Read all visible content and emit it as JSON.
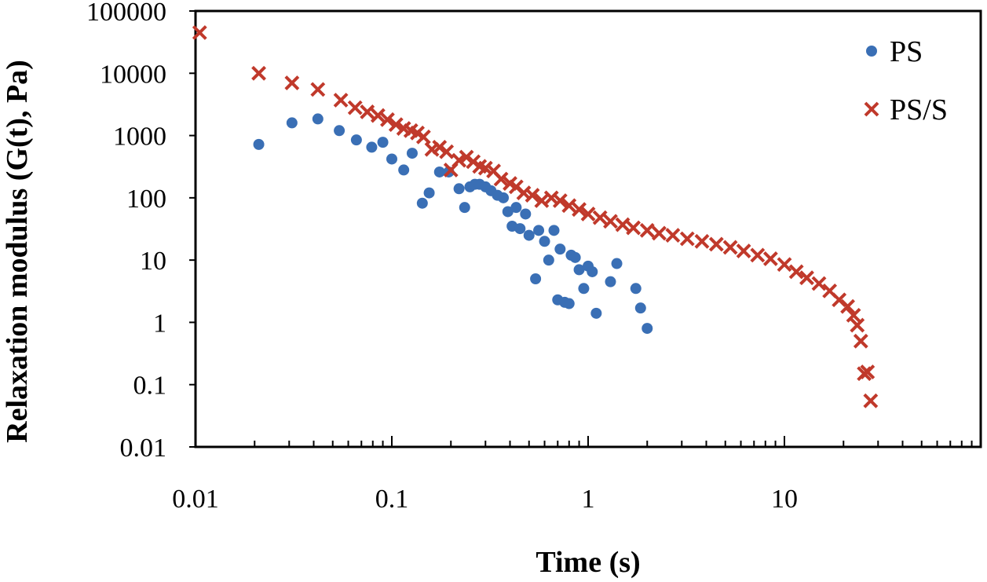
{
  "chart_data": {
    "type": "scatter",
    "xlabel": "Time (s)",
    "ylabel": "Relaxation modulus (G(t), Pa)",
    "xscale": "log",
    "yscale": "log",
    "xlim": [
      0.01,
      100
    ],
    "ylim": [
      0.01,
      100000
    ],
    "x_tick_labels": [
      "0.01",
      "0.1",
      "1",
      "10"
    ],
    "y_tick_labels": [
      "0.01",
      "0.1",
      "1",
      "10",
      "100",
      "1000",
      "10000",
      "100000"
    ],
    "grid": false,
    "legend_position": "top-right",
    "series": [
      {
        "name": "PS",
        "marker": "circle",
        "color": "#3a6fb5",
        "points": [
          [
            0.021,
            720
          ],
          [
            0.031,
            1600
          ],
          [
            0.042,
            1850
          ],
          [
            0.054,
            1200
          ],
          [
            0.066,
            850
          ],
          [
            0.079,
            650
          ],
          [
            0.09,
            780
          ],
          [
            0.1,
            420
          ],
          [
            0.115,
            280
          ],
          [
            0.127,
            520
          ],
          [
            0.143,
            82
          ],
          [
            0.155,
            120
          ],
          [
            0.175,
            260
          ],
          [
            0.195,
            260
          ],
          [
            0.22,
            140
          ],
          [
            0.235,
            70
          ],
          [
            0.25,
            150
          ],
          [
            0.265,
            165
          ],
          [
            0.28,
            165
          ],
          [
            0.3,
            150
          ],
          [
            0.32,
            130
          ],
          [
            0.345,
            110
          ],
          [
            0.37,
            100
          ],
          [
            0.39,
            60
          ],
          [
            0.41,
            35
          ],
          [
            0.43,
            70
          ],
          [
            0.45,
            32
          ],
          [
            0.48,
            55
          ],
          [
            0.5,
            25
          ],
          [
            0.54,
            5
          ],
          [
            0.56,
            30
          ],
          [
            0.6,
            20
          ],
          [
            0.63,
            10
          ],
          [
            0.67,
            30
          ],
          [
            0.7,
            2.3
          ],
          [
            0.72,
            15
          ],
          [
            0.76,
            2.1
          ],
          [
            0.8,
            2.0
          ],
          [
            0.82,
            12
          ],
          [
            0.86,
            11
          ],
          [
            0.9,
            7.0
          ],
          [
            0.95,
            3.5
          ],
          [
            1.0,
            8.0
          ],
          [
            1.05,
            6.5
          ],
          [
            1.1,
            1.4
          ],
          [
            1.3,
            4.5
          ],
          [
            1.4,
            8.8
          ],
          [
            1.75,
            3.5
          ],
          [
            1.85,
            1.7
          ],
          [
            2.0,
            0.8
          ]
        ]
      },
      {
        "name": "PS/S",
        "marker": "x",
        "color": "#c0392b",
        "points": [
          [
            0.0105,
            45000
          ],
          [
            0.021,
            10000
          ],
          [
            0.031,
            7000
          ],
          [
            0.042,
            5500
          ],
          [
            0.055,
            3700
          ],
          [
            0.065,
            2800
          ],
          [
            0.075,
            2400
          ],
          [
            0.085,
            2100
          ],
          [
            0.095,
            1800
          ],
          [
            0.105,
            1500
          ],
          [
            0.115,
            1300
          ],
          [
            0.125,
            1200
          ],
          [
            0.135,
            1100
          ],
          [
            0.145,
            950
          ],
          [
            0.16,
            600
          ],
          [
            0.175,
            650
          ],
          [
            0.19,
            550
          ],
          [
            0.2,
            280
          ],
          [
            0.22,
            400
          ],
          [
            0.24,
            450
          ],
          [
            0.26,
            380
          ],
          [
            0.28,
            320
          ],
          [
            0.3,
            300
          ],
          [
            0.33,
            270
          ],
          [
            0.36,
            200
          ],
          [
            0.4,
            170
          ],
          [
            0.43,
            150
          ],
          [
            0.47,
            120
          ],
          [
            0.52,
            110
          ],
          [
            0.58,
            90
          ],
          [
            0.65,
            100
          ],
          [
            0.72,
            90
          ],
          [
            0.8,
            75
          ],
          [
            0.9,
            65
          ],
          [
            1.0,
            55
          ],
          [
            1.15,
            48
          ],
          [
            1.3,
            42
          ],
          [
            1.5,
            37
          ],
          [
            1.7,
            33
          ],
          [
            2.0,
            30
          ],
          [
            2.3,
            27
          ],
          [
            2.7,
            25
          ],
          [
            3.2,
            22
          ],
          [
            3.8,
            20
          ],
          [
            4.5,
            18
          ],
          [
            5.3,
            16
          ],
          [
            6.2,
            14
          ],
          [
            7.3,
            12
          ],
          [
            8.5,
            10.5
          ],
          [
            10.0,
            8.5
          ],
          [
            11.5,
            6.5
          ],
          [
            13.0,
            5.2
          ],
          [
            15.0,
            4.2
          ],
          [
            17.0,
            3.2
          ],
          [
            19.0,
            2.3
          ],
          [
            21.0,
            1.8
          ],
          [
            22.5,
            1.3
          ],
          [
            23.5,
            0.9
          ],
          [
            24.5,
            0.5
          ],
          [
            25.5,
            0.15
          ],
          [
            26.5,
            0.16
          ],
          [
            27.5,
            0.055
          ]
        ]
      }
    ]
  }
}
